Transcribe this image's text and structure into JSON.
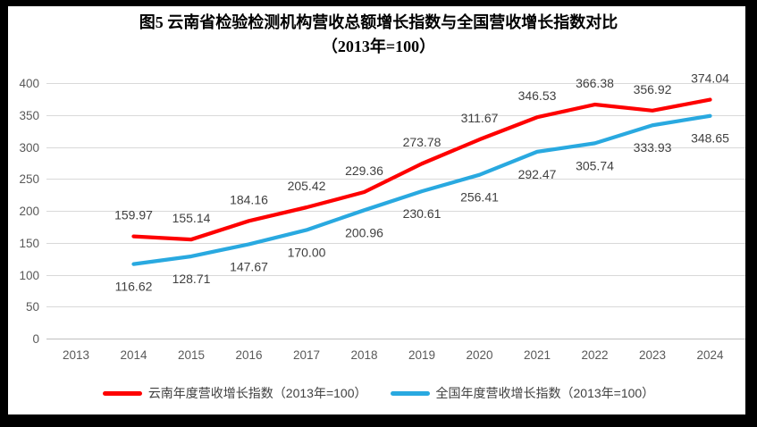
{
  "title": {
    "line1": "图5  云南省检验检测机构营收总额增长指数与全国营收增长指数对比",
    "line2": "（2013年=100）"
  },
  "legend": [
    {
      "label": "云南年度营收增长指数（2013年=100）",
      "color": "#fe0000"
    },
    {
      "label": "全国年度营收增长指数（2013年=100）",
      "color": "#29a9e0"
    }
  ],
  "colors": {
    "yunnan_line": "#fe0000",
    "national_line": "#29a9e0",
    "gridline": "#d9d9d9",
    "baseline": "#bfbfbf",
    "axis_text": "#595959",
    "data_label_text": "#404040",
    "frame": "#000000"
  },
  "chart_data": {
    "type": "line",
    "title": "图5  云南省检验检测机构营收总额增长指数与全国营收增长指数对比（2013年=100）",
    "categories": [
      2013,
      2014,
      2015,
      2016,
      2017,
      2018,
      2019,
      2020,
      2021,
      2022,
      2023,
      2024
    ],
    "series": [
      {
        "name": "云南年度营收增长指数（2013年=100）",
        "color": "#fe0000",
        "years": [
          2014,
          2015,
          2016,
          2017,
          2018,
          2019,
          2020,
          2021,
          2022,
          2023,
          2024
        ],
        "values": [
          159.97,
          155.14,
          184.16,
          205.42,
          229.36,
          273.78,
          311.67,
          346.53,
          366.38,
          356.92,
          374.04
        ],
        "label_position": "above"
      },
      {
        "name": "全国年度营收增长指数（2013年=100）",
        "color": "#29a9e0",
        "years": [
          2014,
          2015,
          2016,
          2017,
          2018,
          2019,
          2020,
          2021,
          2022,
          2023,
          2024
        ],
        "values": [
          116.62,
          128.71,
          147.67,
          170.0,
          200.96,
          230.61,
          256.41,
          292.47,
          305.74,
          333.93,
          348.65
        ],
        "label_position": "below"
      }
    ],
    "xlabel": "",
    "ylabel": "",
    "ylim": [
      0,
      400
    ],
    "yticks": [
      0,
      50,
      100,
      150,
      200,
      250,
      300,
      350,
      400
    ],
    "grid": true,
    "legend_position": "bottom",
    "data_labels": true,
    "label_decimals": 2
  }
}
